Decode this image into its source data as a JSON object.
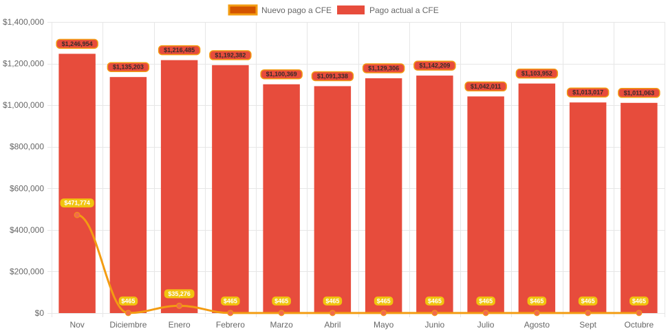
{
  "colors": {
    "bar": "#e74c3c",
    "line": "#f39c12",
    "point": "#f26b4a",
    "bar_label_bg": "#e74c3c",
    "bar_label_border": "#f39c12",
    "line_label_bg": "#f1c40f",
    "grid": "#e6e6e6",
    "axis_text": "#666666",
    "legend_line_fill": "#d35400"
  },
  "chart_data": {
    "type": "bar",
    "title": "",
    "xlabel": "",
    "ylabel": "",
    "ylim": [
      0,
      1400000
    ],
    "y_ticks": [
      0,
      200000,
      400000,
      600000,
      800000,
      1000000,
      1200000,
      1400000
    ],
    "y_tick_labels": [
      "$0",
      "$200,000",
      "$400,000",
      "$600,000",
      "$800,000",
      "$1,000,000",
      "$1,200,000",
      "$1,400,000"
    ],
    "categories": [
      "Nov",
      "Diciembre",
      "Enero",
      "Febrero",
      "Marzo",
      "Abril",
      "Mayo",
      "Junio",
      "Julio",
      "Agosto",
      "Sept",
      "Octubre"
    ],
    "grid": true,
    "legend_position": "top-center",
    "series": [
      {
        "name": "Nuevo pago a CFE",
        "kind": "line",
        "values": [
          471774,
          465,
          35276,
          465,
          465,
          465,
          465,
          465,
          465,
          465,
          465,
          465
        ],
        "labels": [
          "$471,774",
          "$465",
          "$35,276",
          "$465",
          "$465",
          "$465",
          "$465",
          "$465",
          "$465",
          "$465",
          "$465",
          "$465"
        ]
      },
      {
        "name": "Pago actual a CFE",
        "kind": "bar",
        "values": [
          1246954,
          1135203,
          1216485,
          1192382,
          1100369,
          1091338,
          1129306,
          1142209,
          1042011,
          1103952,
          1013017,
          1011063
        ],
        "labels": [
          "$1,246,954",
          "$1,135,203",
          "$1,216,485",
          "$1,192,382",
          "$1,100,369",
          "$1,091,338",
          "$1,129,306",
          "$1,142,209",
          "$1,042,011",
          "$1,103,952",
          "$1,013,017",
          "$1,011,063"
        ]
      }
    ]
  }
}
